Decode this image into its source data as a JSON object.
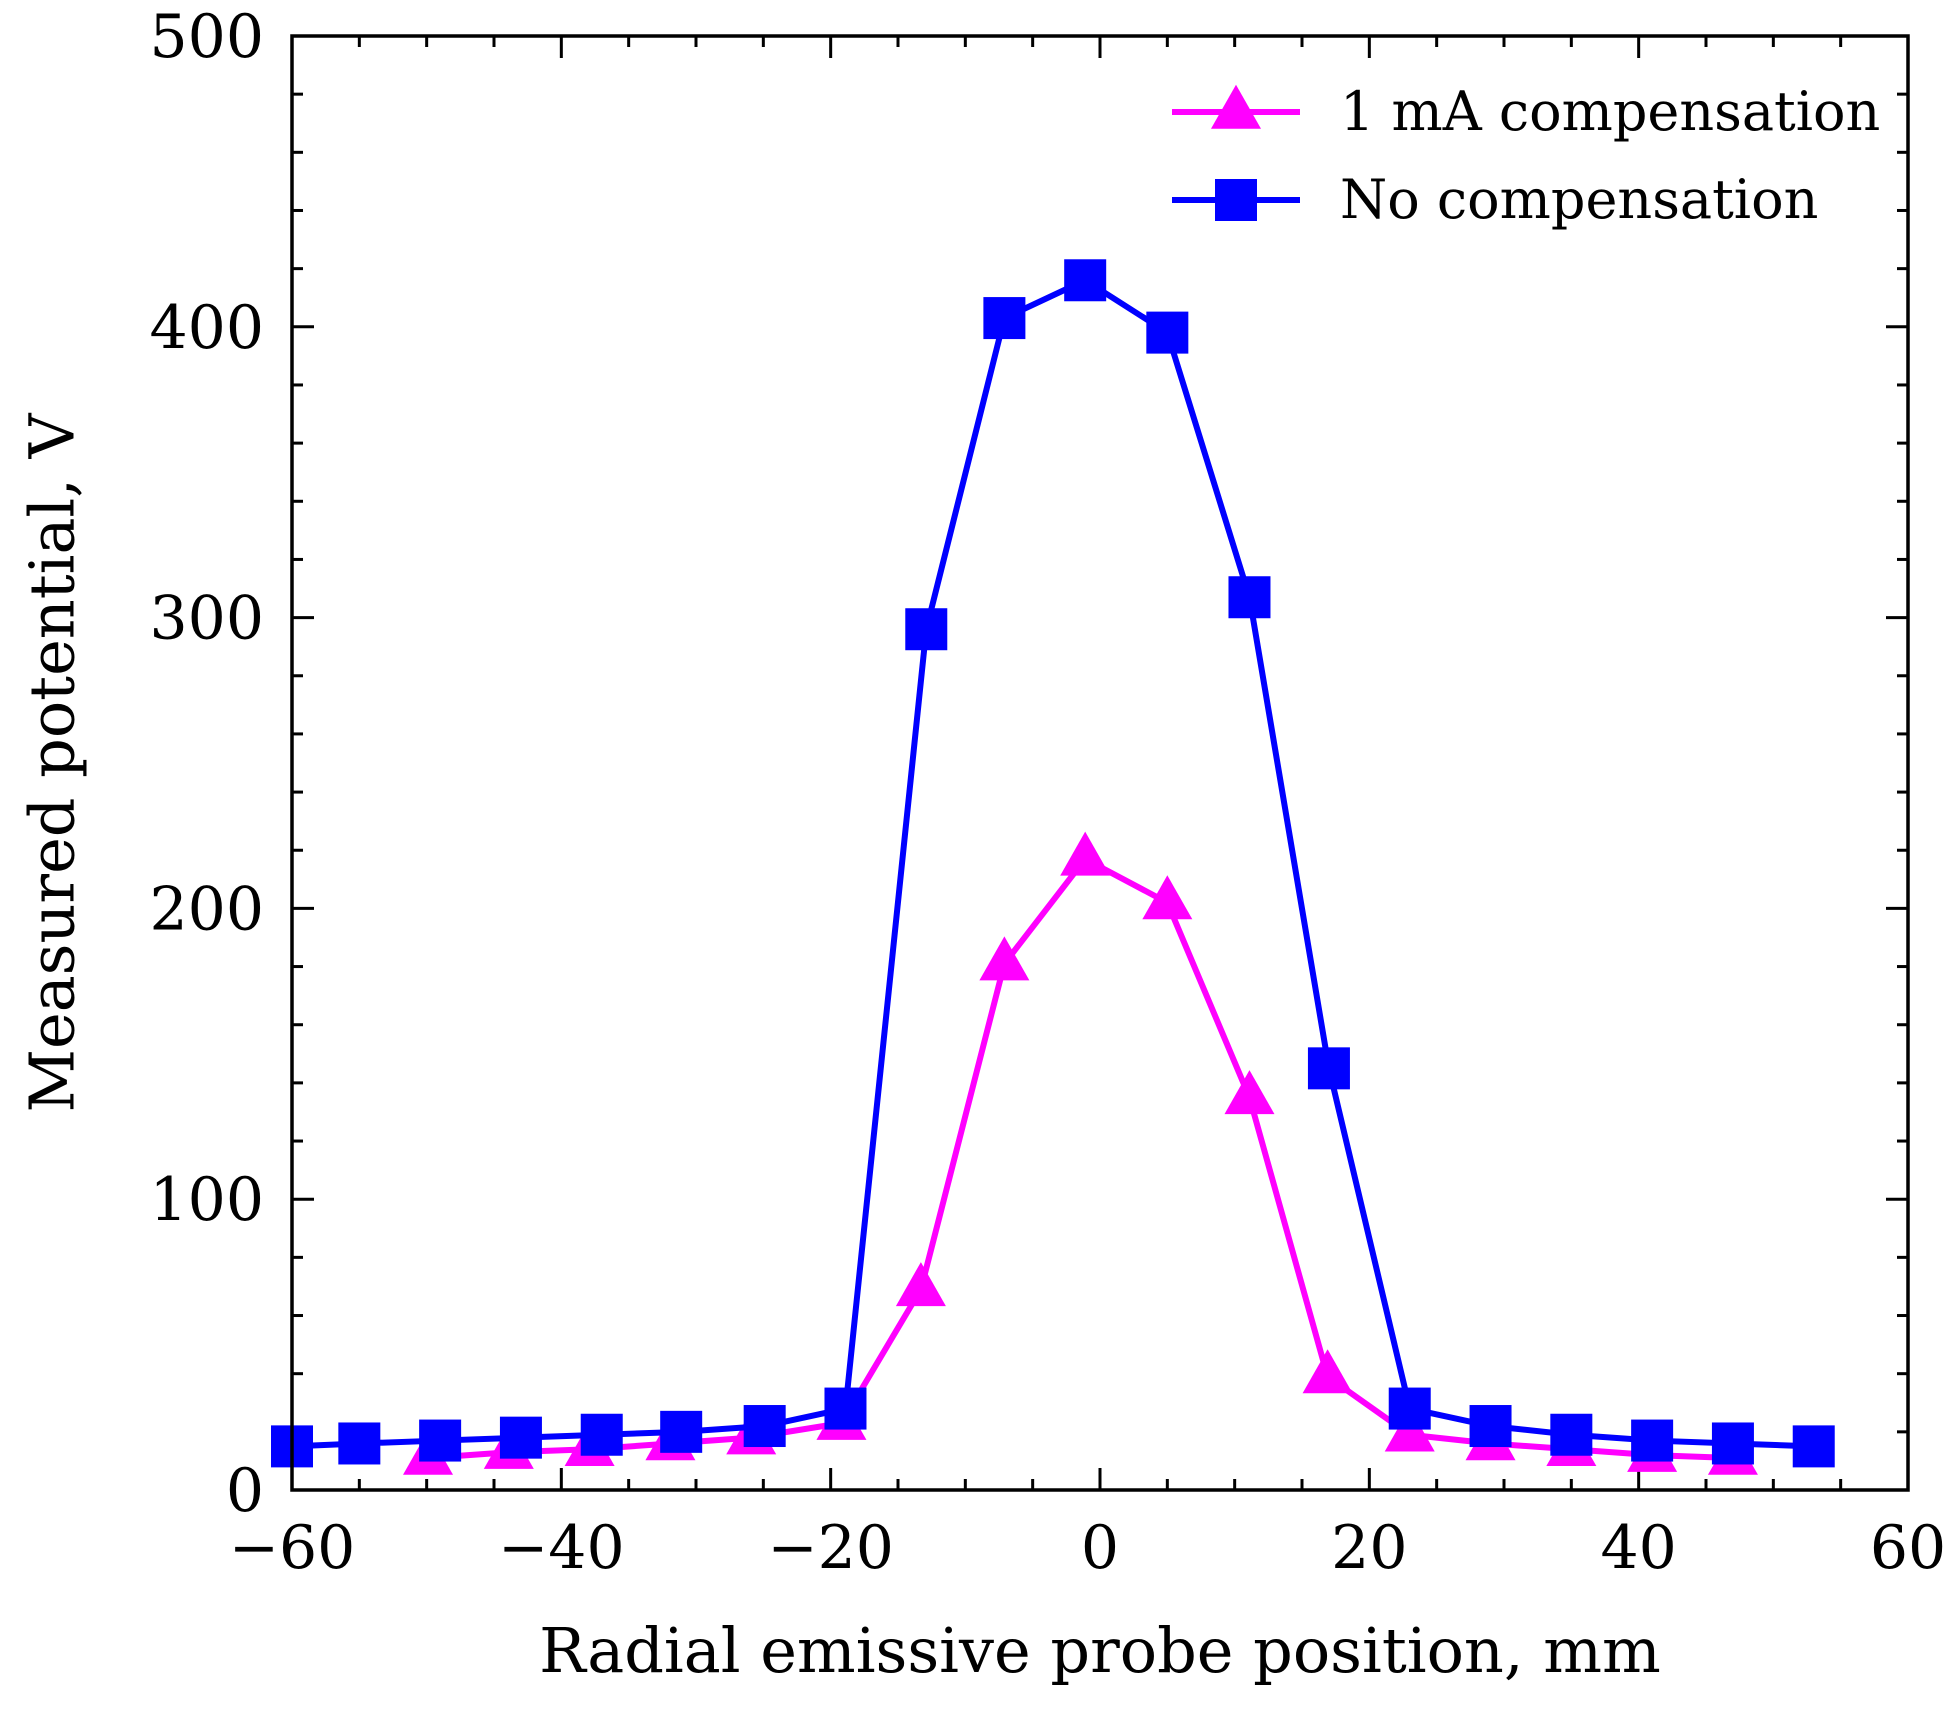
{
  "chart_data": {
    "type": "line",
    "title": "",
    "xlabel": "Radial emissive probe position, mm",
    "ylabel": "Measured potential, V",
    "xlim": [
      -60,
      60
    ],
    "ylim": [
      0,
      500
    ],
    "xticks": [
      -60,
      -40,
      -20,
      0,
      20,
      40,
      60
    ],
    "xtick_labels": [
      "−60",
      "−40",
      "−20",
      "0",
      "20",
      "40",
      "60"
    ],
    "yticks": [
      0,
      100,
      200,
      300,
      400,
      500
    ],
    "ytick_labels": [
      "0",
      "100",
      "200",
      "300",
      "400",
      "500"
    ],
    "grid": false,
    "legend_position": "top-right",
    "series": [
      {
        "name": "1 mA compensation",
        "color": "#ff00ff",
        "marker": "triangle",
        "x": [
          -49.9,
          -43.9,
          -37.9,
          -31.9,
          -25.9,
          -19.2,
          -13.3,
          -7.1,
          -1.1,
          5.0,
          11.1,
          16.9,
          23.0,
          29.0,
          35.0,
          41.0,
          47.0
        ],
        "y": [
          11,
          13,
          14,
          16,
          18,
          23,
          69,
          181,
          217,
          202,
          135,
          39,
          19,
          16,
          14,
          12,
          11
        ]
      },
      {
        "name": "No compensation",
        "color": "#0000ff",
        "marker": "square",
        "x": [
          -60.0,
          -55.0,
          -49.0,
          -43.0,
          -37.0,
          -31.1,
          -24.9,
          -18.9,
          -12.9,
          -7.1,
          -1.1,
          5.0,
          11.1,
          17.0,
          23.0,
          29.0,
          35.0,
          41.0,
          47.0,
          53.0
        ],
        "y": [
          15,
          16,
          17,
          18,
          19,
          20,
          22,
          28,
          296,
          403,
          416,
          398,
          307,
          145,
          28,
          22,
          19,
          17,
          16,
          15
        ]
      }
    ]
  }
}
